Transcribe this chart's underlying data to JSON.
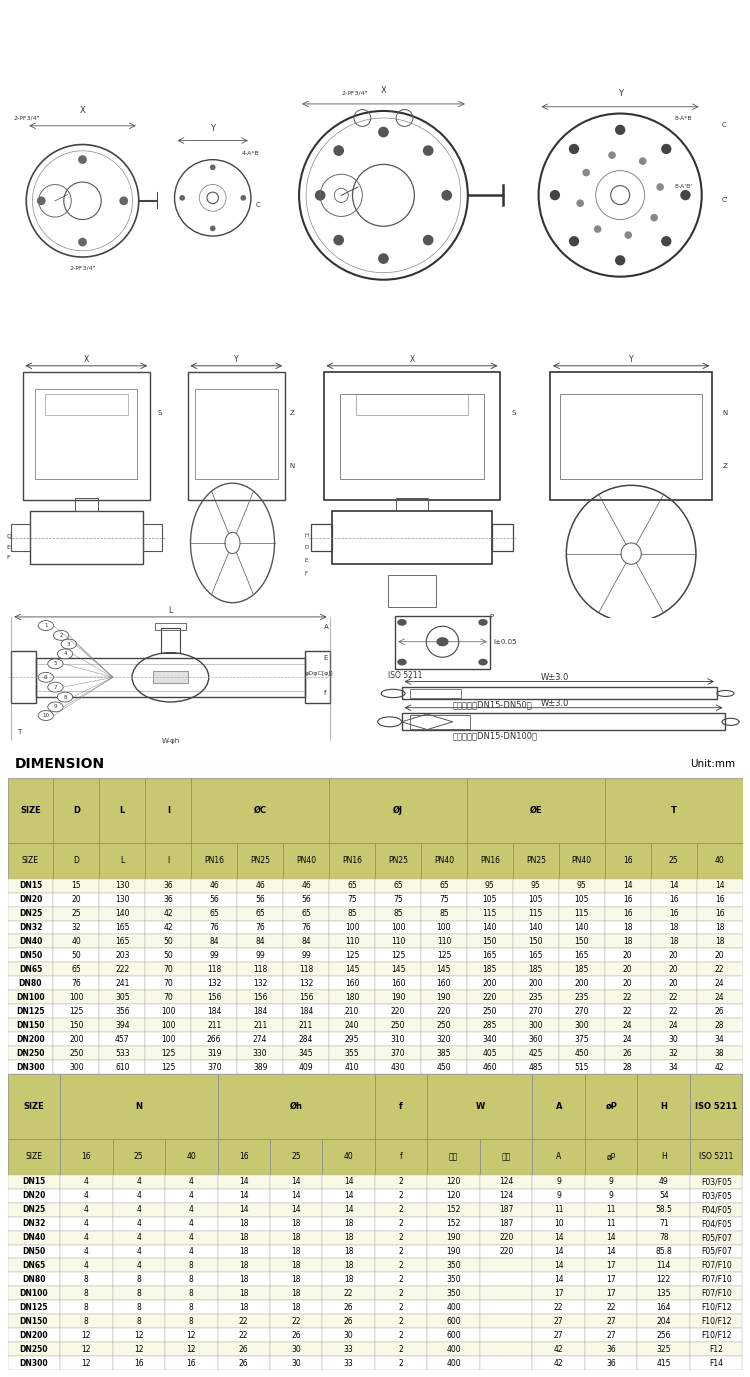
{
  "title": "DIMENSION",
  "unit": "Unit:mm",
  "bg_color": "#ffffff",
  "header_color": "#c8c870",
  "table1_col_groups": [
    {
      "label": "SIZE",
      "cols": 1
    },
    {
      "label": "D",
      "cols": 1
    },
    {
      "label": "L",
      "cols": 1
    },
    {
      "label": "l",
      "cols": 1
    },
    {
      "label": "ØC",
      "cols": 3
    },
    {
      "label": "ØJ",
      "cols": 3
    },
    {
      "label": "ØE",
      "cols": 3
    },
    {
      "label": "T",
      "cols": 3
    }
  ],
  "table1_subheaders": [
    "SIZE",
    "D",
    "L",
    "l",
    "PN16",
    "PN25",
    "PN40",
    "PN16",
    "PN25",
    "PN40",
    "PN16",
    "PN25",
    "PN40",
    "16",
    "25",
    "40"
  ],
  "table1_data": [
    [
      "DN15",
      "15",
      "130",
      "36",
      "46",
      "46",
      "46",
      "65",
      "65",
      "65",
      "95",
      "95",
      "95",
      "14",
      "14",
      "14"
    ],
    [
      "DN20",
      "20",
      "130",
      "36",
      "56",
      "56",
      "56",
      "75",
      "75",
      "75",
      "105",
      "105",
      "105",
      "16",
      "16",
      "16"
    ],
    [
      "DN25",
      "25",
      "140",
      "42",
      "65",
      "65",
      "65",
      "85",
      "85",
      "85",
      "115",
      "115",
      "115",
      "16",
      "16",
      "16"
    ],
    [
      "DN32",
      "32",
      "165",
      "42",
      "76",
      "76",
      "76",
      "100",
      "100",
      "100",
      "140",
      "140",
      "140",
      "18",
      "18",
      "18"
    ],
    [
      "DN40",
      "40",
      "165",
      "50",
      "84",
      "84",
      "84",
      "110",
      "110",
      "110",
      "150",
      "150",
      "150",
      "18",
      "18",
      "18"
    ],
    [
      "DN50",
      "50",
      "203",
      "50",
      "99",
      "99",
      "99",
      "125",
      "125",
      "125",
      "165",
      "165",
      "165",
      "20",
      "20",
      "20"
    ],
    [
      "DN65",
      "65",
      "222",
      "70",
      "118",
      "118",
      "118",
      "145",
      "145",
      "145",
      "185",
      "185",
      "185",
      "20",
      "20",
      "22"
    ],
    [
      "DN80",
      "76",
      "241",
      "70",
      "132",
      "132",
      "132",
      "160",
      "160",
      "160",
      "200",
      "200",
      "200",
      "20",
      "20",
      "24"
    ],
    [
      "DN100",
      "100",
      "305",
      "70",
      "156",
      "156",
      "156",
      "180",
      "190",
      "190",
      "220",
      "235",
      "235",
      "22",
      "22",
      "24"
    ],
    [
      "DN125",
      "125",
      "356",
      "100",
      "184",
      "184",
      "184",
      "210",
      "220",
      "220",
      "250",
      "270",
      "270",
      "22",
      "22",
      "26"
    ],
    [
      "DN150",
      "150",
      "394",
      "100",
      "211",
      "211",
      "211",
      "240",
      "250",
      "250",
      "285",
      "300",
      "300",
      "24",
      "24",
      "28"
    ],
    [
      "DN200",
      "200",
      "457",
      "100",
      "266",
      "274",
      "284",
      "295",
      "310",
      "320",
      "340",
      "360",
      "375",
      "24",
      "30",
      "34"
    ],
    [
      "DN250",
      "250",
      "533",
      "125",
      "319",
      "330",
      "345",
      "355",
      "370",
      "385",
      "405",
      "425",
      "450",
      "26",
      "32",
      "38"
    ],
    [
      "DN300",
      "300",
      "610",
      "125",
      "370",
      "389",
      "409",
      "410",
      "430",
      "450",
      "460",
      "485",
      "515",
      "28",
      "34",
      "42"
    ]
  ],
  "table2_col_groups": [
    {
      "label": "SIZE",
      "cols": 1
    },
    {
      "label": "N",
      "cols": 3
    },
    {
      "label": "Øh",
      "cols": 3
    },
    {
      "label": "f",
      "cols": 1
    },
    {
      "label": "W",
      "cols": 2
    },
    {
      "label": "A",
      "cols": 1
    },
    {
      "label": "øP",
      "cols": 1
    },
    {
      "label": "H",
      "cols": 1
    },
    {
      "label": "ISO 5211",
      "cols": 1
    }
  ],
  "table2_subheaders": [
    "SIZE",
    "16",
    "25",
    "40",
    "16",
    "25",
    "40",
    "f",
    "普通",
    "鑄造",
    "A",
    "øP",
    "H",
    "ISO 5211"
  ],
  "table2_data": [
    [
      "DN15",
      "4",
      "4",
      "4",
      "14",
      "14",
      "14",
      "2",
      "120",
      "124",
      "9",
      "9",
      "49",
      "F03/F05"
    ],
    [
      "DN20",
      "4",
      "4",
      "4",
      "14",
      "14",
      "14",
      "2",
      "120",
      "124",
      "9",
      "9",
      "54",
      "F03/F05"
    ],
    [
      "DN25",
      "4",
      "4",
      "4",
      "14",
      "14",
      "14",
      "2",
      "152",
      "187",
      "11",
      "11",
      "58.5",
      "F04/F05"
    ],
    [
      "DN32",
      "4",
      "4",
      "4",
      "18",
      "18",
      "18",
      "2",
      "152",
      "187",
      "10",
      "11",
      "71",
      "F04/F05"
    ],
    [
      "DN40",
      "4",
      "4",
      "4",
      "18",
      "18",
      "18",
      "2",
      "190",
      "220",
      "14",
      "14",
      "78",
      "F05/F07"
    ],
    [
      "DN50",
      "4",
      "4",
      "4",
      "18",
      "18",
      "18",
      "2",
      "190",
      "220",
      "14",
      "14",
      "85.8",
      "F05/F07"
    ],
    [
      "DN65",
      "4",
      "4",
      "8",
      "18",
      "18",
      "18",
      "2",
      "350",
      "",
      "14",
      "17",
      "114",
      "F07/F10"
    ],
    [
      "DN80",
      "8",
      "8",
      "8",
      "18",
      "18",
      "18",
      "2",
      "350",
      "",
      "14",
      "17",
      "122",
      "F07/F10"
    ],
    [
      "DN100",
      "8",
      "8",
      "8",
      "18",
      "18",
      "22",
      "2",
      "350",
      "",
      "17",
      "17",
      "135",
      "F07/F10"
    ],
    [
      "DN125",
      "8",
      "8",
      "8",
      "18",
      "18",
      "26",
      "2",
      "400",
      "",
      "22",
      "22",
      "164",
      "F10/F12"
    ],
    [
      "DN150",
      "8",
      "8",
      "8",
      "22",
      "22",
      "26",
      "2",
      "600",
      "",
      "27",
      "27",
      "204",
      "F10/F12"
    ],
    [
      "DN200",
      "12",
      "12",
      "12",
      "22",
      "26",
      "30",
      "2",
      "600",
      "",
      "27",
      "27",
      "256",
      "F10/F12"
    ],
    [
      "DN250",
      "12",
      "12",
      "12",
      "26",
      "30",
      "33",
      "2",
      "400",
      "",
      "42",
      "36",
      "325",
      "F12"
    ],
    [
      "DN300",
      "12",
      "16",
      "16",
      "26",
      "30",
      "33",
      "2",
      "400",
      "",
      "42",
      "36",
      "415",
      "F14"
    ]
  ]
}
